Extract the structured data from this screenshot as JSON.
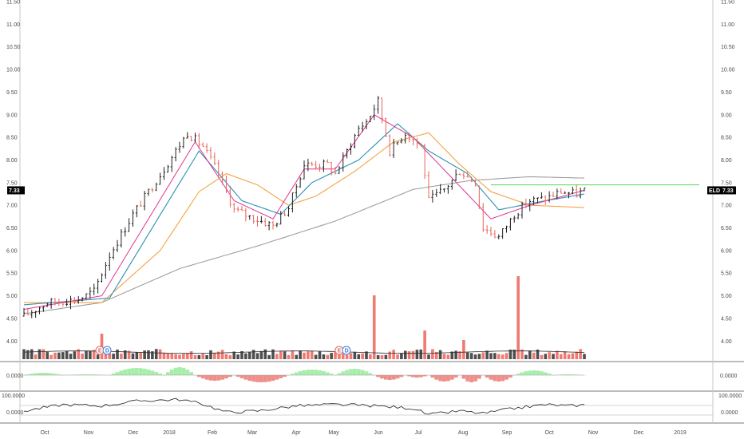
{
  "chart_data": [
    {
      "type": "ohlc",
      "panel": "price",
      "symbol_tag": "ELD",
      "last_price_label": "7.33",
      "last_price": 7.33,
      "resistance_level": 7.45,
      "ylim": [
        3.6,
        11.5
      ],
      "y_ticks": [
        "11.50",
        "11.00",
        "10.50",
        "10.00",
        "9.50",
        "9.00",
        "8.50",
        "8.00",
        "7.50",
        "7.00",
        "6.50",
        "6.00",
        "5.50",
        "5.00",
        "4.50",
        "4.00"
      ],
      "x_ticks": [
        "Oct",
        "Nov",
        "Dec",
        "2018",
        "Feb",
        "Mar",
        "Apr",
        "May",
        "Jun",
        "Jul",
        "Aug",
        "Sep",
        "Oct",
        "Nov",
        "Dec",
        "2019"
      ],
      "price_path": [
        [
          0,
          4.55
        ],
        [
          6,
          4.85
        ],
        [
          14,
          4.92
        ],
        [
          18,
          5.1
        ],
        [
          22,
          5.9
        ],
        [
          28,
          6.8
        ],
        [
          36,
          7.8
        ],
        [
          42,
          8.6
        ],
        [
          46,
          8.3
        ],
        [
          50,
          7.7
        ],
        [
          54,
          6.9
        ],
        [
          58,
          6.75
        ],
        [
          64,
          6.55
        ],
        [
          68,
          6.95
        ],
        [
          72,
          7.9
        ],
        [
          78,
          7.9
        ],
        [
          80,
          7.7
        ],
        [
          86,
          8.7
        ],
        [
          88,
          8.85
        ],
        [
          91,
          9.3
        ],
        [
          94,
          8.2
        ],
        [
          98,
          8.6
        ],
        [
          102,
          8.3
        ],
        [
          104,
          7.1
        ],
        [
          108,
          7.35
        ],
        [
          112,
          7.75
        ],
        [
          116,
          7.5
        ],
        [
          118,
          6.5
        ],
        [
          122,
          6.3
        ],
        [
          126,
          6.8
        ],
        [
          130,
          7.1
        ],
        [
          134,
          7.15
        ],
        [
          138,
          7.3
        ],
        [
          142,
          7.25
        ],
        [
          144,
          7.33
        ]
      ],
      "sma_200_path": [
        [
          0,
          4.6
        ],
        [
          20,
          4.85
        ],
        [
          40,
          5.6
        ],
        [
          60,
          6.1
        ],
        [
          80,
          6.65
        ],
        [
          100,
          7.35
        ],
        [
          115,
          7.55
        ],
        [
          130,
          7.63
        ],
        [
          144,
          7.6
        ]
      ],
      "sma_50_path": [
        [
          0,
          4.85
        ],
        [
          20,
          4.85
        ],
        [
          35,
          6.0
        ],
        [
          45,
          7.3
        ],
        [
          52,
          7.7
        ],
        [
          60,
          7.45
        ],
        [
          68,
          7.0
        ],
        [
          75,
          7.2
        ],
        [
          85,
          7.75
        ],
        [
          95,
          8.4
        ],
        [
          104,
          8.6
        ],
        [
          112,
          7.9
        ],
        [
          120,
          7.3
        ],
        [
          130,
          7.0
        ],
        [
          144,
          6.95
        ]
      ],
      "ema_fast_path": [
        [
          0,
          4.7
        ],
        [
          20,
          5.0
        ],
        [
          44,
          8.4
        ],
        [
          54,
          7.1
        ],
        [
          64,
          6.7
        ],
        [
          72,
          7.8
        ],
        [
          80,
          7.8
        ],
        [
          90,
          9.0
        ],
        [
          100,
          8.5
        ],
        [
          110,
          7.6
        ],
        [
          120,
          6.7
        ],
        [
          130,
          7.0
        ],
        [
          144,
          7.33
        ]
      ],
      "ema_mid_path": [
        [
          0,
          4.8
        ],
        [
          22,
          4.95
        ],
        [
          45,
          8.2
        ],
        [
          56,
          7.1
        ],
        [
          66,
          6.8
        ],
        [
          74,
          7.5
        ],
        [
          86,
          8.0
        ],
        [
          96,
          8.8
        ],
        [
          104,
          8.2
        ],
        [
          114,
          7.7
        ],
        [
          122,
          6.9
        ],
        [
          134,
          7.1
        ],
        [
          144,
          7.25
        ]
      ],
      "volume_spikes": [
        [
          20,
          0.4
        ],
        [
          90,
          1.0
        ],
        [
          103,
          0.45
        ],
        [
          113,
          0.3
        ],
        [
          127,
          1.3
        ]
      ],
      "earnings_markers": [
        {
          "position": 19.5,
          "labels": [
            "E",
            "D"
          ]
        },
        {
          "position": 81,
          "labels": [
            "E",
            "D"
          ]
        }
      ]
    },
    {
      "type": "histogram",
      "panel": "oscillator",
      "y_tick": "0.0000",
      "waves": [
        [
          0,
          10,
          0.3
        ],
        [
          10,
          22,
          0.1
        ],
        [
          22,
          36,
          0.9
        ],
        [
          36,
          44,
          1.0
        ],
        [
          44,
          54,
          -0.7
        ],
        [
          54,
          68,
          -0.9
        ],
        [
          68,
          80,
          0.7
        ],
        [
          80,
          90,
          0.8
        ],
        [
          90,
          98,
          -0.6
        ],
        [
          98,
          104,
          -0.3
        ],
        [
          104,
          112,
          -0.8
        ],
        [
          112,
          118,
          -0.9
        ],
        [
          118,
          126,
          -0.8
        ],
        [
          126,
          136,
          0.6
        ],
        [
          136,
          144,
          0.1
        ]
      ]
    },
    {
      "type": "line",
      "panel": "oscillator-2",
      "y_ticks": [
        "100.0000",
        "0.0000"
      ],
      "path": [
        [
          0,
          0.35
        ],
        [
          10,
          0.6
        ],
        [
          20,
          0.55
        ],
        [
          30,
          0.75
        ],
        [
          40,
          0.8
        ],
        [
          46,
          0.62
        ],
        [
          52,
          0.3
        ],
        [
          60,
          0.35
        ],
        [
          70,
          0.55
        ],
        [
          80,
          0.6
        ],
        [
          90,
          0.55
        ],
        [
          100,
          0.45
        ],
        [
          104,
          0.2
        ],
        [
          112,
          0.35
        ],
        [
          118,
          0.25
        ],
        [
          126,
          0.45
        ],
        [
          134,
          0.6
        ],
        [
          140,
          0.55
        ],
        [
          144,
          0.58
        ]
      ]
    }
  ]
}
